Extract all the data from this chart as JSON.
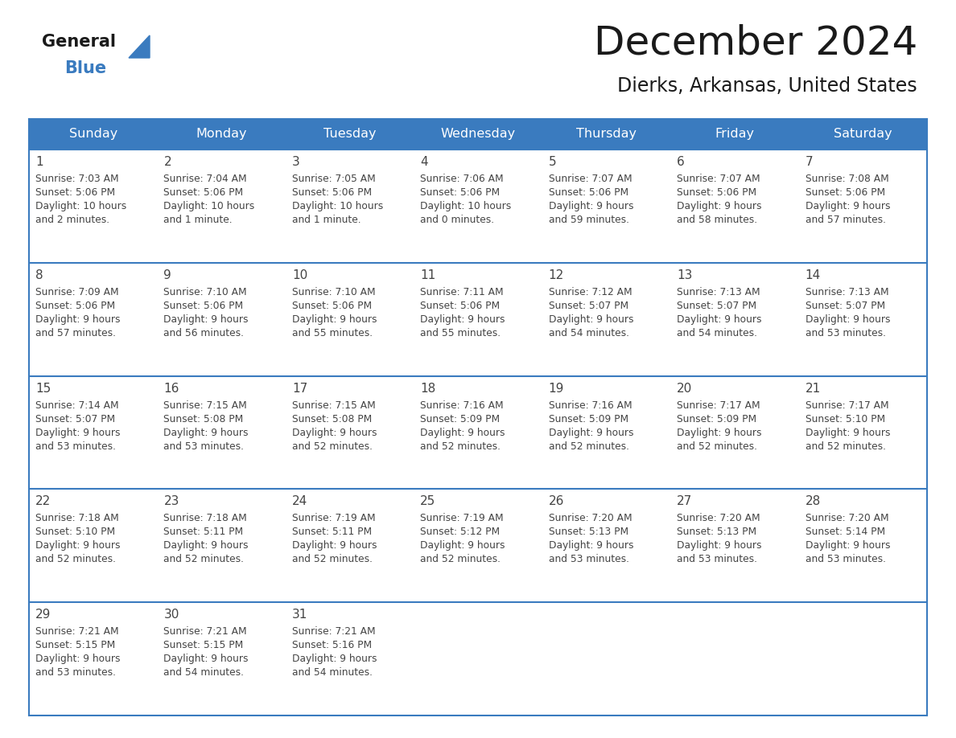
{
  "title": "December 2024",
  "subtitle": "Dierks, Arkansas, United States",
  "header_color": "#3a7bbf",
  "header_text_color": "#ffffff",
  "cell_bg_color": "#ffffff",
  "border_color": "#3a7bbf",
  "title_color": "#1a1a1a",
  "text_color": "#444444",
  "days_of_week": [
    "Sunday",
    "Monday",
    "Tuesday",
    "Wednesday",
    "Thursday",
    "Friday",
    "Saturday"
  ],
  "weeks": [
    [
      {
        "day": 1,
        "sunrise": "7:03 AM",
        "sunset": "5:06 PM",
        "daylight": "10 hours\nand 2 minutes."
      },
      {
        "day": 2,
        "sunrise": "7:04 AM",
        "sunset": "5:06 PM",
        "daylight": "10 hours\nand 1 minute."
      },
      {
        "day": 3,
        "sunrise": "7:05 AM",
        "sunset": "5:06 PM",
        "daylight": "10 hours\nand 1 minute."
      },
      {
        "day": 4,
        "sunrise": "7:06 AM",
        "sunset": "5:06 PM",
        "daylight": "10 hours\nand 0 minutes."
      },
      {
        "day": 5,
        "sunrise": "7:07 AM",
        "sunset": "5:06 PM",
        "daylight": "9 hours\nand 59 minutes."
      },
      {
        "day": 6,
        "sunrise": "7:07 AM",
        "sunset": "5:06 PM",
        "daylight": "9 hours\nand 58 minutes."
      },
      {
        "day": 7,
        "sunrise": "7:08 AM",
        "sunset": "5:06 PM",
        "daylight": "9 hours\nand 57 minutes."
      }
    ],
    [
      {
        "day": 8,
        "sunrise": "7:09 AM",
        "sunset": "5:06 PM",
        "daylight": "9 hours\nand 57 minutes."
      },
      {
        "day": 9,
        "sunrise": "7:10 AM",
        "sunset": "5:06 PM",
        "daylight": "9 hours\nand 56 minutes."
      },
      {
        "day": 10,
        "sunrise": "7:10 AM",
        "sunset": "5:06 PM",
        "daylight": "9 hours\nand 55 minutes."
      },
      {
        "day": 11,
        "sunrise": "7:11 AM",
        "sunset": "5:06 PM",
        "daylight": "9 hours\nand 55 minutes."
      },
      {
        "day": 12,
        "sunrise": "7:12 AM",
        "sunset": "5:07 PM",
        "daylight": "9 hours\nand 54 minutes."
      },
      {
        "day": 13,
        "sunrise": "7:13 AM",
        "sunset": "5:07 PM",
        "daylight": "9 hours\nand 54 minutes."
      },
      {
        "day": 14,
        "sunrise": "7:13 AM",
        "sunset": "5:07 PM",
        "daylight": "9 hours\nand 53 minutes."
      }
    ],
    [
      {
        "day": 15,
        "sunrise": "7:14 AM",
        "sunset": "5:07 PM",
        "daylight": "9 hours\nand 53 minutes."
      },
      {
        "day": 16,
        "sunrise": "7:15 AM",
        "sunset": "5:08 PM",
        "daylight": "9 hours\nand 53 minutes."
      },
      {
        "day": 17,
        "sunrise": "7:15 AM",
        "sunset": "5:08 PM",
        "daylight": "9 hours\nand 52 minutes."
      },
      {
        "day": 18,
        "sunrise": "7:16 AM",
        "sunset": "5:09 PM",
        "daylight": "9 hours\nand 52 minutes."
      },
      {
        "day": 19,
        "sunrise": "7:16 AM",
        "sunset": "5:09 PM",
        "daylight": "9 hours\nand 52 minutes."
      },
      {
        "day": 20,
        "sunrise": "7:17 AM",
        "sunset": "5:09 PM",
        "daylight": "9 hours\nand 52 minutes."
      },
      {
        "day": 21,
        "sunrise": "7:17 AM",
        "sunset": "5:10 PM",
        "daylight": "9 hours\nand 52 minutes."
      }
    ],
    [
      {
        "day": 22,
        "sunrise": "7:18 AM",
        "sunset": "5:10 PM",
        "daylight": "9 hours\nand 52 minutes."
      },
      {
        "day": 23,
        "sunrise": "7:18 AM",
        "sunset": "5:11 PM",
        "daylight": "9 hours\nand 52 minutes."
      },
      {
        "day": 24,
        "sunrise": "7:19 AM",
        "sunset": "5:11 PM",
        "daylight": "9 hours\nand 52 minutes."
      },
      {
        "day": 25,
        "sunrise": "7:19 AM",
        "sunset": "5:12 PM",
        "daylight": "9 hours\nand 52 minutes."
      },
      {
        "day": 26,
        "sunrise": "7:20 AM",
        "sunset": "5:13 PM",
        "daylight": "9 hours\nand 53 minutes."
      },
      {
        "day": 27,
        "sunrise": "7:20 AM",
        "sunset": "5:13 PM",
        "daylight": "9 hours\nand 53 minutes."
      },
      {
        "day": 28,
        "sunrise": "7:20 AM",
        "sunset": "5:14 PM",
        "daylight": "9 hours\nand 53 minutes."
      }
    ],
    [
      {
        "day": 29,
        "sunrise": "7:21 AM",
        "sunset": "5:15 PM",
        "daylight": "9 hours\nand 53 minutes."
      },
      {
        "day": 30,
        "sunrise": "7:21 AM",
        "sunset": "5:15 PM",
        "daylight": "9 hours\nand 54 minutes."
      },
      {
        "day": 31,
        "sunrise": "7:21 AM",
        "sunset": "5:16 PM",
        "daylight": "9 hours\nand 54 minutes."
      },
      null,
      null,
      null,
      null
    ]
  ],
  "logo_general_color": "#1a1a1a",
  "logo_blue_color": "#3a7bbf",
  "fig_width": 11.88,
  "fig_height": 9.18
}
